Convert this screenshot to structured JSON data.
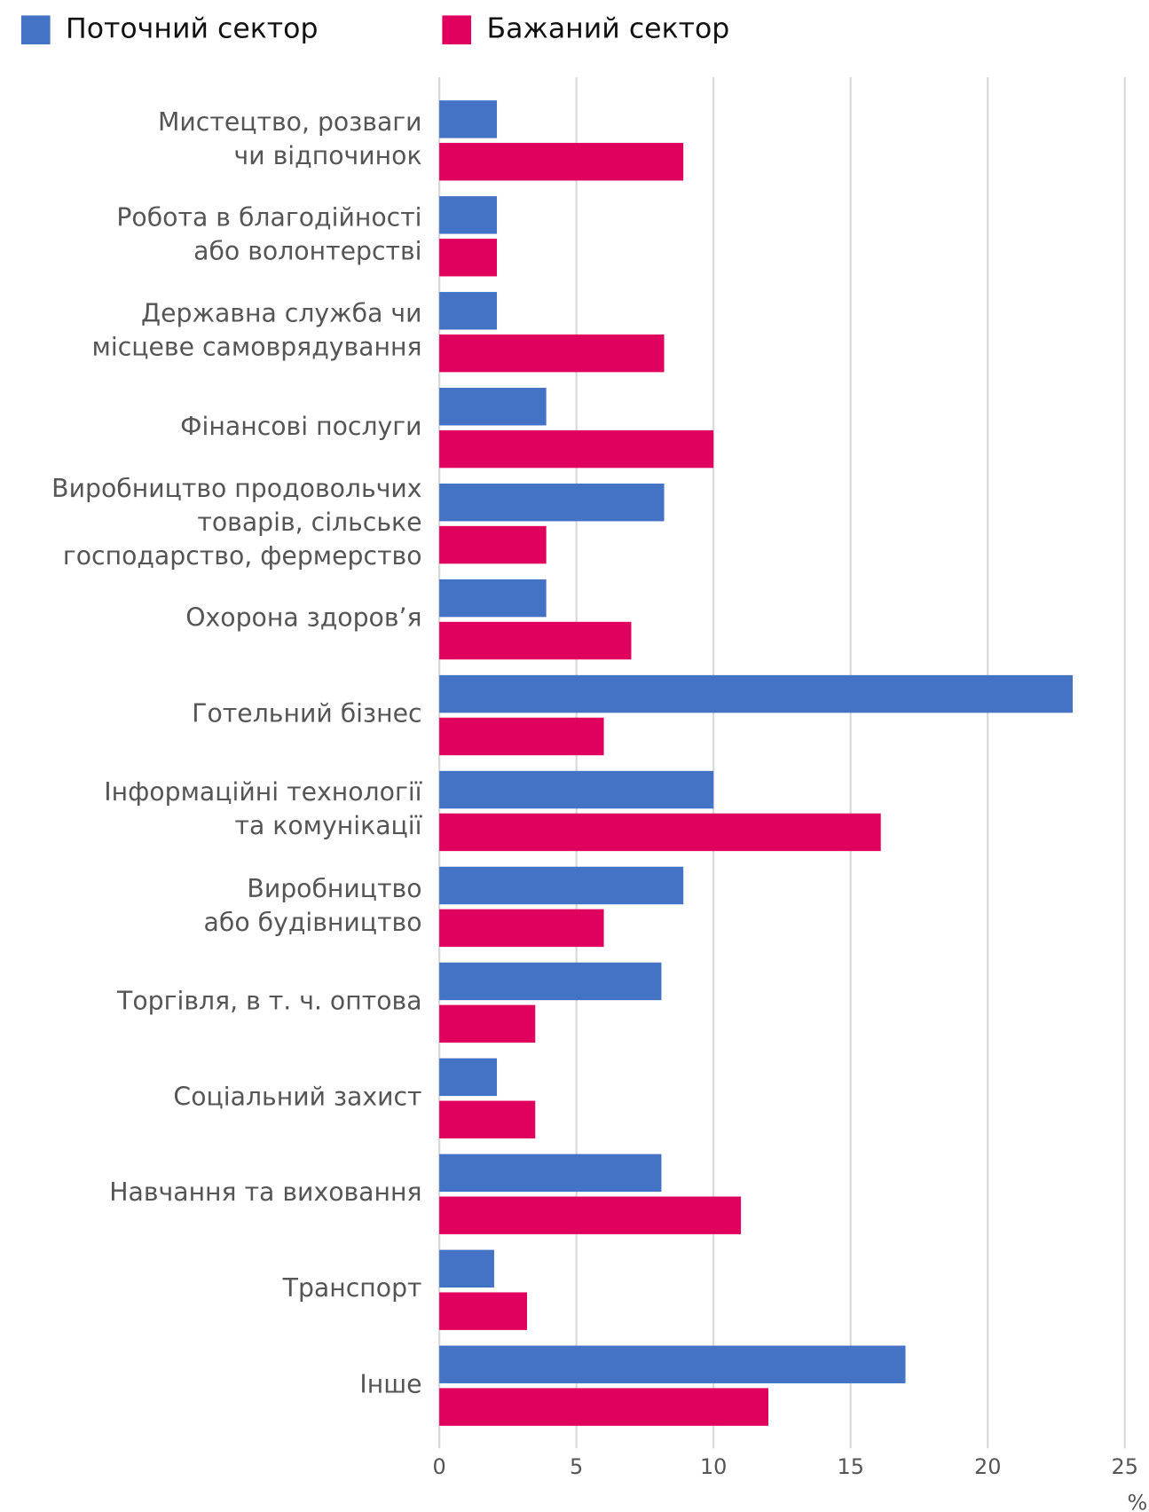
{
  "chart_data": {
    "type": "bar",
    "orientation": "horizontal",
    "categories": [
      "Мистецтво, розваги\nчи відпочинок",
      "Робота в благодійності\nабо волонтерстві",
      "Державна служба чи\nмісцеве самоврядування",
      "Фінансові послуги",
      "Виробництво продовольчих\nтоварів, сільське\nгосподарство, фермерство",
      "Охорона здоров’я",
      "Готельний бізнес",
      "Інформаційні технології\nта комунікації",
      "Виробництво\nабо будівництво",
      "Торгівля, в т. ч. оптова",
      "Соціальний захист",
      "Навчання та виховання",
      "Транспорт",
      "Інше"
    ],
    "series": [
      {
        "name": "Поточний сектор",
        "color": "#4472c4",
        "values": [
          2.1,
          2.1,
          2.1,
          3.9,
          8.2,
          3.9,
          23.1,
          10.0,
          8.9,
          8.1,
          2.1,
          8.1,
          2.0,
          17.0
        ]
      },
      {
        "name": "Бажаний сектор",
        "color": "#e0005e",
        "values": [
          8.9,
          2.1,
          8.2,
          10.0,
          3.9,
          7.0,
          6.0,
          16.1,
          6.0,
          3.5,
          3.5,
          11.0,
          3.2,
          12.0
        ]
      }
    ],
    "xlim": [
      0,
      25
    ],
    "xticks": [
      0,
      5,
      10,
      15,
      20,
      25
    ],
    "x_unit": "%",
    "grid": true,
    "legend": "top"
  }
}
